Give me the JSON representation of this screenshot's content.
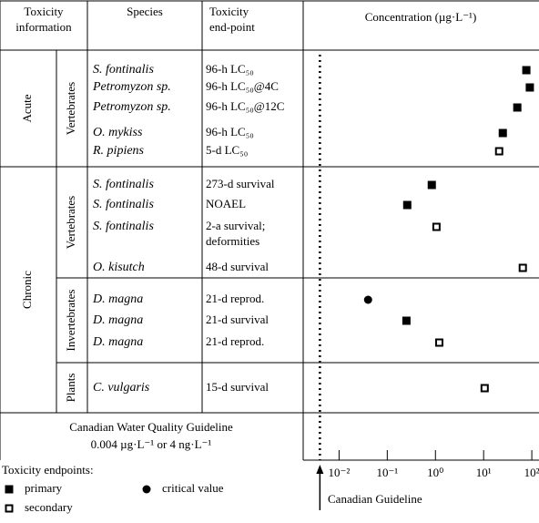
{
  "chart_data": {
    "type": "scatter",
    "headers": [
      "Toxicity information",
      "Species",
      "Toxicity end-point"
    ],
    "x_label": "Concentration (µg·L⁻¹)",
    "xscale": "log",
    "xlim": [
      0.0018,
      141
    ],
    "xticks": [
      {
        "value": 0.01,
        "label": "10⁻²"
      },
      {
        "value": 0.1,
        "label": "10⁻¹"
      },
      {
        "value": 1,
        "label": "10⁰"
      },
      {
        "value": 10,
        "label": "10¹"
      },
      {
        "value": 100,
        "label": "10²"
      }
    ],
    "groups": [
      {
        "name": "Acute",
        "subgroups": [
          "Vertebrates"
        ]
      },
      {
        "name": "Chronic",
        "subgroups": [
          "Vertebrates",
          "Invertebrates",
          "Plants"
        ]
      }
    ],
    "categories": [
      "S. fontinalis",
      "Petromyzon sp.",
      "Petromyzon sp.",
      "O. mykiss",
      "R. pipiens",
      "S. fontinalis",
      "S. fontinalis",
      "S. fontinalis",
      "O. kisutch",
      "D. magna",
      "D. magna",
      "D. magna",
      "C. vulgaris"
    ],
    "endpoints": [
      "96-h LC₅₀",
      "96-h LC₅₀@4C",
      "96-h LC₅₀@12C",
      "96-h LC₅₀",
      "5-d LC₅₀",
      "273-d survival",
      "NOAEL",
      "2-a survival; deformities",
      "48-d survival",
      "21-d reprod.",
      "21-d survival",
      "21-d reprod.",
      "15-d survival"
    ],
    "series": [
      {
        "name": "primary",
        "marker": "square",
        "color": "#000000",
        "values": [
          77,
          91,
          50,
          25,
          null,
          0.84,
          0.26,
          null,
          null,
          null,
          0.25,
          null,
          null
        ]
      },
      {
        "name": "critical value",
        "marker": "circle",
        "color": "#000000",
        "values": [
          null,
          null,
          null,
          null,
          null,
          null,
          null,
          null,
          null,
          0.04,
          null,
          null,
          null
        ]
      },
      {
        "name": "secondary",
        "marker": "open-square",
        "color": "#000000",
        "values": [
          null,
          null,
          null,
          null,
          21,
          null,
          null,
          1.05,
          65,
          null,
          null,
          1.2,
          10.5
        ]
      }
    ],
    "legend_title": "Toxicity endpoints:",
    "guideline": {
      "value": 0.004,
      "title": "Canadian Water Quality Guideline",
      "subtitle": "0.004 µg·L⁻¹ or 4 ng·L⁻¹",
      "label": "Canadian Guideline"
    }
  }
}
